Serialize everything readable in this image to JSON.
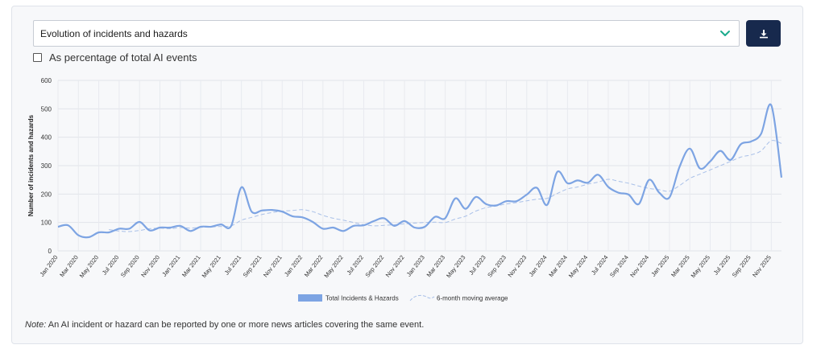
{
  "dropdown": {
    "selected": "Evolution of incidents and hazards"
  },
  "download_button": {
    "icon": "download-icon"
  },
  "checkbox": {
    "label": "As percentage of total AI events",
    "checked": false
  },
  "note": {
    "prefix": "Note:",
    "text": " An AI incident or hazard can be reported by one or more news articles covering the same event."
  },
  "chart_data": {
    "type": "line",
    "ylabel": "Number of incidents and hazards",
    "ylim": [
      0,
      600
    ],
    "yticks": [
      0,
      100,
      200,
      300,
      400,
      500,
      600
    ],
    "grid": true,
    "legend_position": "bottom-center",
    "xtick_labels": [
      "Jan 2020",
      "Mar 2020",
      "May 2020",
      "Jul 2020",
      "Sep 2020",
      "Nov 2020",
      "Jan 2021",
      "Mar 2021",
      "May 2021",
      "Jul 2021",
      "Sep 2021",
      "Nov 2021",
      "Jan 2022",
      "Mar 2022",
      "May 2022",
      "Jul 2022",
      "Sep 2022",
      "Nov 2022",
      "Jan 2023",
      "Mar 2023",
      "May 2023",
      "Jul 2023",
      "Sep 2023",
      "Nov 2023",
      "Jan 2024",
      "Mar 2024",
      "May 2024",
      "Jul 2024",
      "Sep 2024",
      "Nov 2024",
      "Jan 2025",
      "Mar 2025",
      "May 2025",
      "Jul 2025",
      "Sep 2025",
      "Nov 2025"
    ],
    "series": [
      {
        "name": "Total Incidents & Hazards",
        "color": "#7da4e3",
        "style": "solid",
        "values": [
          85,
          90,
          55,
          48,
          65,
          65,
          78,
          78,
          102,
          72,
          82,
          82,
          88,
          70,
          85,
          85,
          93,
          88,
          224,
          138,
          142,
          144,
          138,
          122,
          118,
          102,
          78,
          82,
          70,
          88,
          90,
          105,
          115,
          88,
          105,
          82,
          85,
          120,
          115,
          185,
          148,
          190,
          165,
          160,
          175,
          175,
          198,
          222,
          162,
          278,
          238,
          248,
          240,
          268,
          225,
          205,
          198,
          165,
          250,
          205,
          188,
          296,
          360,
          290,
          315,
          352,
          320,
          375,
          385,
          412,
          512,
          258
        ]
      },
      {
        "name": "6-month moving average",
        "color": "#a9c0e8",
        "style": "dashed",
        "values": [
          null,
          null,
          null,
          null,
          null,
          75,
          70,
          68,
          72,
          78,
          80,
          78,
          82,
          80,
          83,
          84,
          86,
          88,
          108,
          118,
          128,
          135,
          140,
          142,
          145,
          138,
          125,
          115,
          108,
          100,
          92,
          88,
          90,
          92,
          95,
          98,
          100,
          101,
          100,
          112,
          122,
          140,
          152,
          158,
          165,
          170,
          176,
          182,
          185,
          202,
          218,
          225,
          235,
          242,
          252,
          245,
          238,
          228,
          220,
          215,
          210,
          230,
          255,
          270,
          285,
          300,
          315,
          330,
          338,
          352,
          388,
          378
        ]
      }
    ]
  }
}
